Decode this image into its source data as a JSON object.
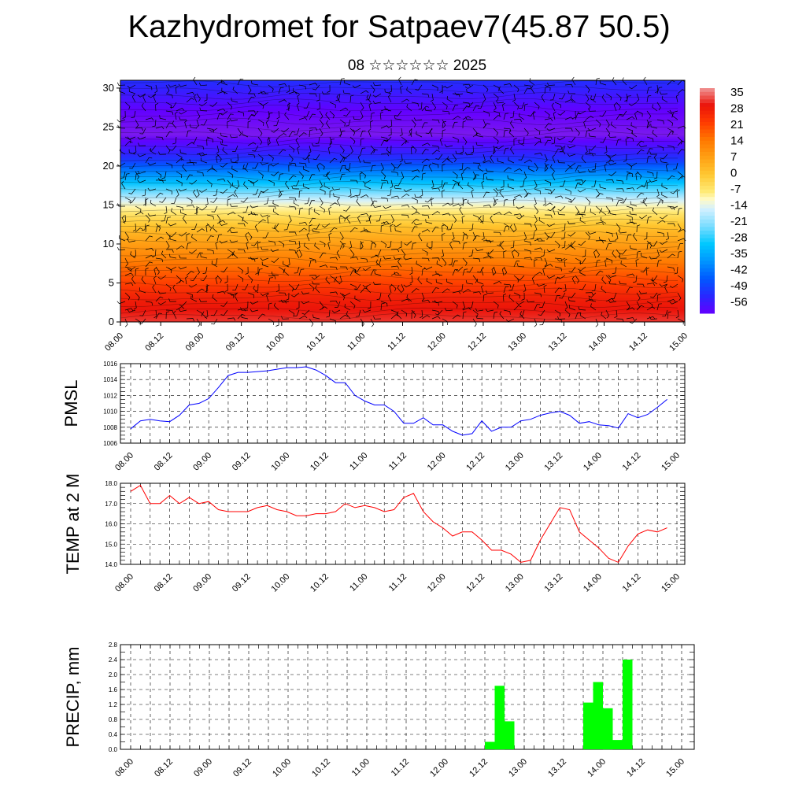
{
  "title": "Kazhydromet for Satpaev7(45.87 50.5)",
  "subtitle": "08 ☆☆☆☆☆☆ 2025",
  "colorbar": {
    "labels": [
      "35",
      "28",
      "21",
      "14",
      "7",
      "0",
      "-7",
      "-14",
      "-21",
      "-28",
      "-35",
      "-42",
      "-49",
      "-56"
    ]
  },
  "chart_data": [
    {
      "type": "heatmap",
      "title": "",
      "x_ticks": [
        "08.00",
        "08.12",
        "09.00",
        "09.12",
        "10.00",
        "10.12",
        "11.00",
        "11.12",
        "12.00",
        "12.12",
        "13.00",
        "13.12",
        "14.00",
        "14.12",
        "15.00"
      ],
      "y_ticks": [
        0,
        5,
        10,
        15,
        20,
        25,
        30
      ],
      "ylim": [
        0,
        31
      ],
      "value_range": [
        -56,
        35
      ],
      "temperature_profile": {
        "levels": [
          0,
          3,
          6,
          9,
          12,
          15,
          18,
          21,
          24,
          27,
          30,
          31
        ],
        "values": [
          30,
          26,
          18,
          10,
          2,
          -10,
          -30,
          -48,
          -58,
          -56,
          -50,
          -48
        ]
      },
      "overlay": "wind barbs"
    },
    {
      "type": "line",
      "ylabel": "PMSL",
      "x_ticks": [
        "08.00",
        "08.12",
        "09.00",
        "09.12",
        "10.00",
        "10.12",
        "11.00",
        "11.12",
        "12.00",
        "12.12",
        "13.00",
        "13.12",
        "14.00",
        "14.12",
        "15.00"
      ],
      "y_ticks": [
        "1006",
        "1008",
        "1010",
        "1012",
        "1014",
        "1016"
      ],
      "ylim": [
        1006,
        1016
      ],
      "x": [
        0,
        3,
        6,
        9,
        12,
        15,
        18,
        21,
        24,
        27,
        30,
        33,
        36,
        39,
        42,
        45,
        48,
        51,
        54,
        57,
        60,
        63,
        66,
        69,
        72,
        75,
        78,
        81,
        84,
        87,
        90,
        93,
        96,
        99,
        102,
        105,
        108,
        111,
        114,
        117,
        120,
        123,
        126,
        129,
        132,
        135,
        138,
        141,
        144,
        147,
        150,
        153,
        156,
        159,
        162,
        165
      ],
      "series": [
        {
          "color": "#0000ff",
          "values": [
            1007.8,
            1008.8,
            1009.0,
            1008.8,
            1008.7,
            1009.5,
            1010.8,
            1011.0,
            1011.6,
            1013.0,
            1014.5,
            1014.9,
            1014.9,
            1015.0,
            1015.1,
            1015.3,
            1015.5,
            1015.5,
            1015.6,
            1015.2,
            1014.5,
            1013.6,
            1013.6,
            1012.0,
            1011.3,
            1010.8,
            1010.8,
            1010.0,
            1008.5,
            1008.5,
            1009.2,
            1008.3,
            1008.3,
            1007.5,
            1007.0,
            1007.2,
            1008.8,
            1007.5,
            1008.0,
            1008.0,
            1008.8,
            1009.0,
            1009.5,
            1009.8,
            1010.0,
            1009.5,
            1008.5,
            1008.7,
            1008.3,
            1008.2,
            1007.9,
            1009.7,
            1009.2,
            1009.6,
            1010.5,
            1011.5
          ]
        }
      ]
    },
    {
      "type": "line",
      "ylabel": "TEMP at 2 M",
      "x_ticks": [
        "08.00",
        "08.12",
        "09.00",
        "09.12",
        "10.00",
        "10.12",
        "11.00",
        "11.12",
        "12.00",
        "12.12",
        "13.00",
        "13.12",
        "14.00",
        "14.12",
        "15.00"
      ],
      "y_ticks": [
        "14.0",
        "15.0",
        "16.0",
        "17.0",
        "18.0"
      ],
      "ylim": [
        14.0,
        18.0
      ],
      "x": [
        0,
        3,
        6,
        9,
        12,
        15,
        18,
        21,
        24,
        27,
        30,
        33,
        36,
        39,
        42,
        45,
        48,
        51,
        54,
        57,
        60,
        63,
        66,
        69,
        72,
        75,
        78,
        81,
        84,
        87,
        90,
        93,
        96,
        99,
        102,
        105,
        108,
        111,
        114,
        117,
        120,
        123,
        126,
        129,
        132,
        135,
        138,
        141,
        144,
        147,
        150,
        153,
        156,
        159,
        162,
        165
      ],
      "series": [
        {
          "color": "#ff0000",
          "values": [
            17.6,
            17.9,
            17.0,
            17.0,
            17.4,
            17.0,
            17.3,
            17.0,
            17.1,
            16.7,
            16.6,
            16.6,
            16.6,
            16.8,
            16.9,
            16.7,
            16.6,
            16.4,
            16.4,
            16.5,
            16.5,
            16.6,
            17.0,
            16.8,
            16.9,
            16.8,
            16.6,
            16.7,
            17.3,
            17.5,
            16.6,
            16.1,
            15.8,
            15.4,
            15.6,
            15.6,
            15.2,
            14.7,
            14.7,
            14.5,
            14.1,
            14.2,
            15.2,
            16.0,
            16.8,
            16.7,
            15.6,
            15.2,
            14.8,
            14.3,
            14.1,
            14.9,
            15.5,
            15.7,
            15.6,
            15.8
          ]
        }
      ]
    },
    {
      "type": "bar",
      "ylabel": "PRECIP, mm",
      "x_ticks": [
        "08.00",
        "08.12",
        "09.00",
        "09.12",
        "10.00",
        "10.12",
        "11.00",
        "11.12",
        "12.00",
        "12.12",
        "13.00",
        "13.12",
        "14.00",
        "14.12",
        "15.00"
      ],
      "y_ticks": [
        "0.0",
        "0.4",
        "0.8",
        "1.2",
        "1.6",
        "2.0",
        "2.4",
        "2.8"
      ],
      "ylim": [
        0,
        2.8
      ],
      "x_hours": [
        108,
        111,
        114,
        138,
        141,
        144,
        147,
        150
      ],
      "values": [
        0.2,
        1.7,
        0.75,
        1.25,
        1.8,
        1.1,
        0.25,
        2.4
      ],
      "color": "#00ff00"
    }
  ]
}
